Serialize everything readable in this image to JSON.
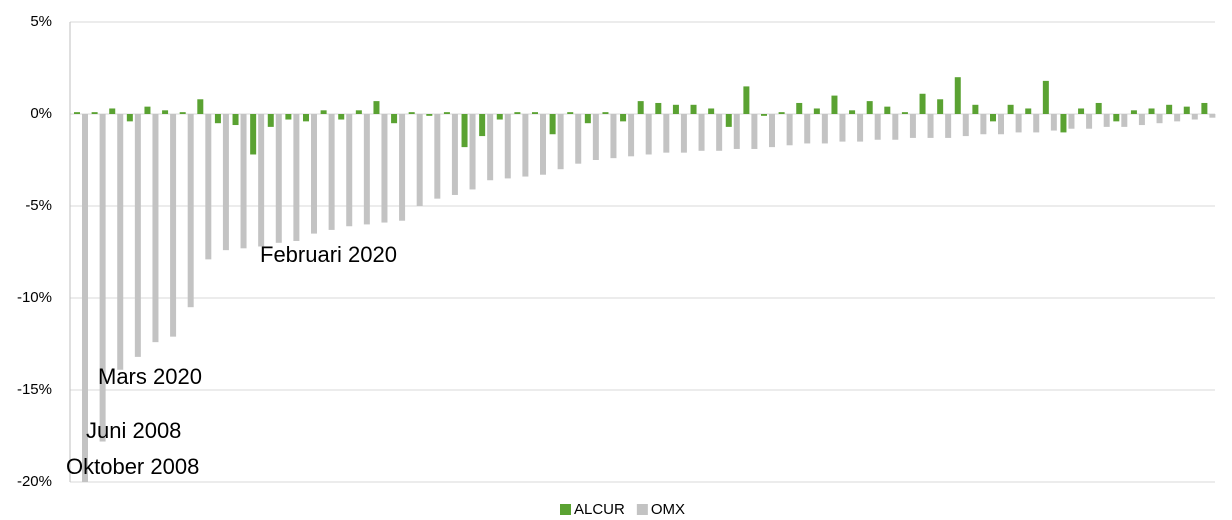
{
  "chart_data": {
    "type": "bar",
    "categories": [
      null,
      null,
      null,
      null,
      null,
      null,
      null,
      null,
      null,
      null,
      null,
      null,
      null,
      null,
      null,
      null,
      null,
      null,
      null,
      null,
      null,
      null,
      null,
      null,
      null,
      null,
      null,
      null,
      null,
      null,
      null,
      null,
      null,
      null,
      null,
      null,
      null,
      null,
      null,
      null,
      null,
      null,
      null,
      null,
      null,
      null,
      null,
      null,
      null,
      null,
      null,
      null,
      null,
      null,
      null,
      null,
      null,
      null,
      null,
      null,
      null,
      null,
      null,
      null,
      null
    ],
    "series": [
      {
        "name": "ALCUR",
        "color": "#5aa232",
        "values": [
          0.1,
          0.1,
          0.3,
          -0.4,
          0.4,
          0.2,
          0.1,
          0.8,
          -0.5,
          -0.6,
          -2.2,
          -0.7,
          -0.3,
          -0.4,
          0.2,
          -0.3,
          0.2,
          0.7,
          -0.5,
          0.1,
          -0.1,
          0.1,
          -1.8,
          -1.2,
          -0.3,
          0.1,
          0.1,
          -1.1,
          0.1,
          -0.5,
          0.1,
          -0.4,
          0.7,
          0.6,
          0.5,
          0.5,
          0.3,
          -0.7,
          1.5,
          -0.1,
          0.1,
          0.6,
          0.3,
          1.0,
          0.2,
          0.7,
          0.4,
          0.1,
          1.1,
          0.8,
          2.0,
          0.5,
          -0.4,
          0.5,
          0.3,
          1.8,
          -1.0,
          0.3,
          0.6,
          -0.4,
          0.2,
          0.3,
          0.5,
          0.4,
          0.6
        ]
      },
      {
        "name": "OMX",
        "color": "#c3c3c3",
        "values": [
          -20,
          -17.8,
          -13.9,
          -13.2,
          -12.4,
          -12.1,
          -10.5,
          -7.9,
          -7.4,
          -7.3,
          -7.2,
          -7.0,
          -6.9,
          -6.5,
          -6.3,
          -6.1,
          -6.0,
          -5.9,
          -5.8,
          -5.0,
          -4.6,
          -4.4,
          -4.1,
          -3.6,
          -3.5,
          -3.4,
          -3.3,
          -3.0,
          -2.7,
          -2.5,
          -2.4,
          -2.3,
          -2.2,
          -2.1,
          -2.1,
          -2.0,
          -2.0,
          -1.9,
          -1.9,
          -1.8,
          -1.7,
          -1.6,
          -1.6,
          -1.5,
          -1.5,
          -1.4,
          -1.4,
          -1.3,
          -1.3,
          -1.3,
          -1.2,
          -1.1,
          -1.1,
          -1.0,
          -1.0,
          -0.9,
          -0.8,
          -0.8,
          -0.7,
          -0.7,
          -0.6,
          -0.5,
          -0.4,
          -0.3,
          -0.2
        ]
      }
    ],
    "ylim": [
      -20,
      5
    ],
    "yticks": [
      {
        "value": -20,
        "label": "-20%"
      },
      {
        "value": -15,
        "label": "-15%"
      },
      {
        "value": -10,
        "label": "-10%"
      },
      {
        "value": -5,
        "label": "-5%"
      },
      {
        "value": 0,
        "label": "0%"
      },
      {
        "value": 5,
        "label": "5%"
      }
    ],
    "grid": true,
    "legend": "bottom",
    "annotations": [
      "Oktober 2008",
      "Juni 2008",
      "Mars 2020",
      "Februari 2020"
    ]
  }
}
